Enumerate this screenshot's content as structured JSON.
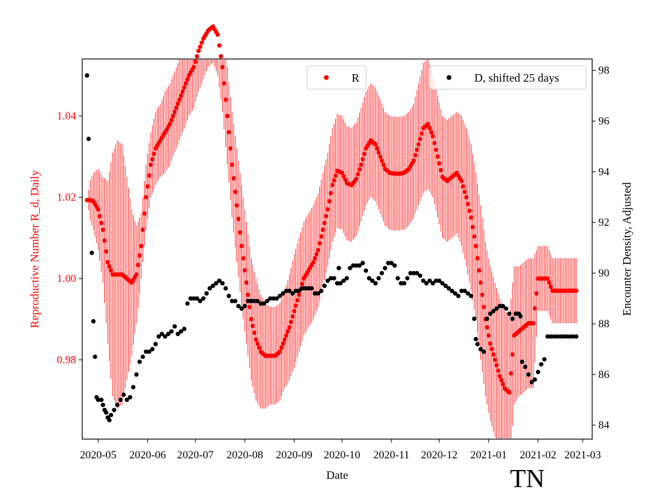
{
  "chart_data": {
    "type": "scatter",
    "xlabel": "Date",
    "ylabel_left": "Reproductive Number R_d, Daily",
    "ylabel_right": "Encounter Density, Adjusted",
    "corner_tag": "TN",
    "left_axis_color": "#ff0000",
    "right_axis_color": "#000000",
    "x_range_days": [
      -10,
      310
    ],
    "x_ticks": [
      {
        "day": 0,
        "label": "2020-05"
      },
      {
        "day": 31,
        "label": "2020-06"
      },
      {
        "day": 61,
        "label": "2020-07"
      },
      {
        "day": 92,
        "label": "2020-08"
      },
      {
        "day": 123,
        "label": "2020-09"
      },
      {
        "day": 153,
        "label": "2020-10"
      },
      {
        "day": 184,
        "label": "2020-11"
      },
      {
        "day": 214,
        "label": "2020-12"
      },
      {
        "day": 245,
        "label": "2021-01"
      },
      {
        "day": 276,
        "label": "2021-02"
      },
      {
        "day": 304,
        "label": "2021-03"
      }
    ],
    "y_left": {
      "range": [
        0.9605,
        1.054
      ],
      "ticks": [
        0.98,
        1.0,
        1.02,
        1.04
      ],
      "tick_labels": [
        "0.98",
        "1.00",
        "1.02",
        "1.04"
      ]
    },
    "y_right": {
      "range": [
        83.45,
        98.45
      ],
      "ticks": [
        84,
        86,
        88,
        90,
        92,
        94,
        96,
        98
      ],
      "tick_labels": [
        "84",
        "86",
        "88",
        "90",
        "92",
        "94",
        "96",
        "98"
      ]
    },
    "legend": [
      {
        "label": "R",
        "color": "#ff0000",
        "position": "upper-center"
      },
      {
        "label": "D, shifted 25 days",
        "color": "#000000",
        "position": "upper-right"
      }
    ],
    "series": [
      {
        "name": "R",
        "axis": "left",
        "color": "#ff0000",
        "error_bars": true,
        "points": [
          [
            -7,
            1.0193,
            0.0
          ],
          [
            -5,
            1.0193,
            0.005
          ],
          [
            -3,
            1.019,
            0.007
          ],
          [
            0,
            1.017,
            0.01
          ],
          [
            3,
            1.012,
            0.013
          ],
          [
            6,
            1.004,
            0.02
          ],
          [
            9,
            1.001,
            0.03
          ],
          [
            12,
            1.001,
            0.033
          ],
          [
            15,
            1.001,
            0.032
          ],
          [
            18,
            1.0,
            0.025
          ],
          [
            21,
            0.999,
            0.018
          ],
          [
            24,
            1.001,
            0.012
          ],
          [
            27,
            1.008,
            0.008
          ],
          [
            30,
            1.02,
            0.008
          ],
          [
            33,
            1.028,
            0.008
          ],
          [
            36,
            1.032,
            0.009
          ],
          [
            39,
            1.034,
            0.009
          ],
          [
            42,
            1.036,
            0.01
          ],
          [
            45,
            1.038,
            0.01
          ],
          [
            48,
            1.041,
            0.01
          ],
          [
            51,
            1.044,
            0.01
          ],
          [
            54,
            1.047,
            0.01
          ],
          [
            57,
            1.05,
            0.01
          ],
          [
            60,
            1.052,
            0.01
          ],
          [
            63,
            1.056,
            0.01
          ],
          [
            66,
            1.059,
            0.01
          ],
          [
            69,
            1.061,
            0.009
          ],
          [
            72,
            1.062,
            0.009
          ],
          [
            75,
            1.06,
            0.01
          ],
          [
            78,
            1.052,
            0.011
          ],
          [
            81,
            1.04,
            0.012
          ],
          [
            84,
            1.028,
            0.013
          ],
          [
            87,
            1.018,
            0.014
          ],
          [
            90,
            1.008,
            0.015
          ],
          [
            93,
            0.999,
            0.015
          ],
          [
            96,
            0.99,
            0.015
          ],
          [
            99,
            0.985,
            0.015
          ],
          [
            102,
            0.982,
            0.014
          ],
          [
            105,
            0.981,
            0.013
          ],
          [
            108,
            0.981,
            0.012
          ],
          [
            111,
            0.981,
            0.012
          ],
          [
            114,
            0.982,
            0.012
          ],
          [
            117,
            0.985,
            0.012
          ],
          [
            120,
            0.988,
            0.013
          ],
          [
            123,
            0.992,
            0.014
          ],
          [
            126,
            0.996,
            0.014
          ],
          [
            129,
            1.0,
            0.014
          ],
          [
            132,
            1.002,
            0.014
          ],
          [
            135,
            1.004,
            0.014
          ],
          [
            138,
            1.007,
            0.014
          ],
          [
            141,
            1.012,
            0.014
          ],
          [
            144,
            1.017,
            0.014
          ],
          [
            147,
            1.023,
            0.014
          ],
          [
            150,
            1.0265,
            0.014
          ],
          [
            153,
            1.026,
            0.014
          ],
          [
            156,
            1.0235,
            0.014
          ],
          [
            159,
            1.023,
            0.014
          ],
          [
            162,
            1.0245,
            0.014
          ],
          [
            165,
            1.028,
            0.014
          ],
          [
            168,
            1.032,
            0.014
          ],
          [
            171,
            1.034,
            0.014
          ],
          [
            174,
            1.033,
            0.014
          ],
          [
            177,
            1.03,
            0.014
          ],
          [
            180,
            1.027,
            0.014
          ],
          [
            183,
            1.026,
            0.014
          ],
          [
            186,
            1.0258,
            0.014
          ],
          [
            189,
            1.0258,
            0.014
          ],
          [
            192,
            1.026,
            0.014
          ],
          [
            195,
            1.027,
            0.014
          ],
          [
            198,
            1.029,
            0.014
          ],
          [
            201,
            1.033,
            0.015
          ],
          [
            204,
            1.037,
            0.016
          ],
          [
            207,
            1.038,
            0.016
          ],
          [
            210,
            1.035,
            0.015
          ],
          [
            213,
            1.03,
            0.015
          ],
          [
            216,
            1.025,
            0.015
          ],
          [
            219,
            1.024,
            0.015
          ],
          [
            222,
            1.025,
            0.015
          ],
          [
            225,
            1.026,
            0.015
          ],
          [
            228,
            1.024,
            0.016
          ],
          [
            231,
            1.02,
            0.017
          ],
          [
            234,
            1.015,
            0.018
          ],
          [
            237,
            1.008,
            0.018
          ],
          [
            240,
            0.999,
            0.019
          ],
          [
            243,
            0.99,
            0.019
          ],
          [
            246,
            0.984,
            0.019
          ],
          [
            249,
            0.98,
            0.019
          ],
          [
            252,
            0.976,
            0.019
          ],
          [
            255,
            0.973,
            0.019
          ],
          [
            258,
            0.972,
            0.019
          ],
          [
            261,
            0.986,
            0.017
          ],
          [
            264,
            0.987,
            0.016
          ],
          [
            267,
            0.988,
            0.016
          ],
          [
            270,
            0.989,
            0.016
          ],
          [
            273,
            0.989,
            0.016
          ],
          [
            276,
            1.0,
            0.008
          ],
          [
            279,
            1.0,
            0.008
          ],
          [
            282,
            1.0,
            0.008
          ],
          [
            285,
            0.997,
            0.008
          ],
          [
            288,
            0.997,
            0.008
          ],
          [
            291,
            0.997,
            0.008
          ],
          [
            294,
            0.997,
            0.008
          ],
          [
            297,
            0.997,
            0.008
          ],
          [
            300,
            0.997,
            0.008
          ]
        ]
      },
      {
        "name": "D, shifted 25 days",
        "axis": "right",
        "color": "#000000",
        "error_bars": false,
        "points": [
          [
            -7,
            97.8
          ],
          [
            -6,
            95.3
          ],
          [
            -4,
            90.8
          ],
          [
            -3,
            88.1
          ],
          [
            -2,
            86.7
          ],
          [
            -1,
            85.1
          ],
          [
            0,
            85.0
          ],
          [
            2,
            85.0
          ],
          [
            3,
            84.8
          ],
          [
            4,
            84.6
          ],
          [
            5,
            84.5
          ],
          [
            6,
            84.3
          ],
          [
            7,
            84.2
          ],
          [
            8,
            84.4
          ],
          [
            10,
            84.6
          ],
          [
            12,
            84.8
          ],
          [
            14,
            85.0
          ],
          [
            16,
            85.2
          ],
          [
            18,
            85.0
          ],
          [
            20,
            85.1
          ],
          [
            22,
            85.5
          ],
          [
            24,
            86.0
          ],
          [
            26,
            86.5
          ],
          [
            28,
            86.7
          ],
          [
            30,
            86.9
          ],
          [
            32,
            86.9
          ],
          [
            34,
            87.0
          ],
          [
            36,
            87.2
          ],
          [
            38,
            87.5
          ],
          [
            40,
            87.6
          ],
          [
            42,
            87.5
          ],
          [
            44,
            87.6
          ],
          [
            46,
            87.7
          ],
          [
            48,
            87.9
          ],
          [
            50,
            87.6
          ],
          [
            52,
            87.7
          ],
          [
            54,
            87.8
          ],
          [
            56,
            88.8
          ],
          [
            58,
            89.0
          ],
          [
            60,
            89.0
          ],
          [
            62,
            89.0
          ],
          [
            64,
            88.9
          ],
          [
            66,
            89.0
          ],
          [
            68,
            89.2
          ],
          [
            70,
            89.4
          ],
          [
            72,
            89.5
          ],
          [
            74,
            89.6
          ],
          [
            76,
            89.7
          ],
          [
            78,
            89.6
          ],
          [
            80,
            89.4
          ],
          [
            82,
            89.1
          ],
          [
            84,
            88.9
          ],
          [
            86,
            88.9
          ],
          [
            88,
            88.7
          ],
          [
            90,
            88.6
          ],
          [
            92,
            88.7
          ],
          [
            94,
            88.9
          ],
          [
            96,
            88.9
          ],
          [
            98,
            88.9
          ],
          [
            100,
            88.9
          ],
          [
            102,
            88.8
          ],
          [
            104,
            88.8
          ],
          [
            106,
            88.9
          ],
          [
            108,
            89.0
          ],
          [
            110,
            89.0
          ],
          [
            112,
            89.0
          ],
          [
            114,
            89.1
          ],
          [
            116,
            89.2
          ],
          [
            118,
            89.3
          ],
          [
            120,
            89.3
          ],
          [
            122,
            89.2
          ],
          [
            124,
            89.3
          ],
          [
            126,
            89.3
          ],
          [
            128,
            89.4
          ],
          [
            130,
            89.4
          ],
          [
            132,
            89.4
          ],
          [
            134,
            89.4
          ],
          [
            136,
            89.2
          ],
          [
            138,
            89.2
          ],
          [
            140,
            89.3
          ],
          [
            142,
            89.5
          ],
          [
            144,
            89.7
          ],
          [
            146,
            89.8
          ],
          [
            148,
            89.8
          ],
          [
            150,
            89.6
          ],
          [
            151,
            90.2
          ],
          [
            152,
            89.6
          ],
          [
            154,
            89.7
          ],
          [
            156,
            89.8
          ],
          [
            158,
            90.2
          ],
          [
            160,
            90.3
          ],
          [
            162,
            90.3
          ],
          [
            164,
            90.3
          ],
          [
            166,
            90.4
          ],
          [
            168,
            90.1
          ],
          [
            170,
            89.8
          ],
          [
            172,
            89.7
          ],
          [
            174,
            89.6
          ],
          [
            176,
            89.8
          ],
          [
            178,
            90.0
          ],
          [
            180,
            90.2
          ],
          [
            182,
            90.4
          ],
          [
            184,
            90.4
          ],
          [
            186,
            90.3
          ],
          [
            188,
            89.8
          ],
          [
            190,
            89.6
          ],
          [
            192,
            89.6
          ],
          [
            194,
            89.8
          ],
          [
            196,
            90.0
          ],
          [
            198,
            90.0
          ],
          [
            200,
            90.0
          ],
          [
            202,
            89.9
          ],
          [
            204,
            89.7
          ],
          [
            206,
            89.6
          ],
          [
            208,
            89.7
          ],
          [
            210,
            89.6
          ],
          [
            212,
            89.7
          ],
          [
            214,
            89.7
          ],
          [
            216,
            89.6
          ],
          [
            218,
            89.5
          ],
          [
            220,
            89.4
          ],
          [
            222,
            89.3
          ],
          [
            224,
            89.2
          ],
          [
            226,
            89.1
          ],
          [
            228,
            89.3
          ],
          [
            230,
            89.3
          ],
          [
            232,
            89.2
          ],
          [
            234,
            89.1
          ],
          [
            236,
            88.2
          ],
          [
            237,
            87.4
          ],
          [
            238,
            87.2
          ],
          [
            240,
            87.0
          ],
          [
            242,
            86.9
          ],
          [
            244,
            88.2
          ],
          [
            246,
            88.4
          ],
          [
            248,
            88.5
          ],
          [
            250,
            88.6
          ],
          [
            252,
            88.7
          ],
          [
            254,
            88.7
          ],
          [
            256,
            88.6
          ],
          [
            258,
            88.4
          ],
          [
            260,
            88.2
          ],
          [
            262,
            88.4
          ],
          [
            264,
            88.4
          ],
          [
            265,
            88.3
          ],
          [
            266,
            86.5
          ],
          [
            268,
            86.3
          ],
          [
            270,
            86.0
          ],
          [
            272,
            85.7
          ],
          [
            274,
            85.8
          ],
          [
            276,
            86.1
          ],
          [
            278,
            86.4
          ],
          [
            280,
            86.6
          ],
          [
            282,
            87.5
          ],
          [
            284,
            87.5
          ],
          [
            286,
            87.5
          ],
          [
            288,
            87.5
          ],
          [
            290,
            87.5
          ],
          [
            292,
            87.5
          ],
          [
            294,
            87.5
          ],
          [
            296,
            87.5
          ],
          [
            298,
            87.5
          ],
          [
            300,
            87.5
          ]
        ]
      }
    ]
  }
}
